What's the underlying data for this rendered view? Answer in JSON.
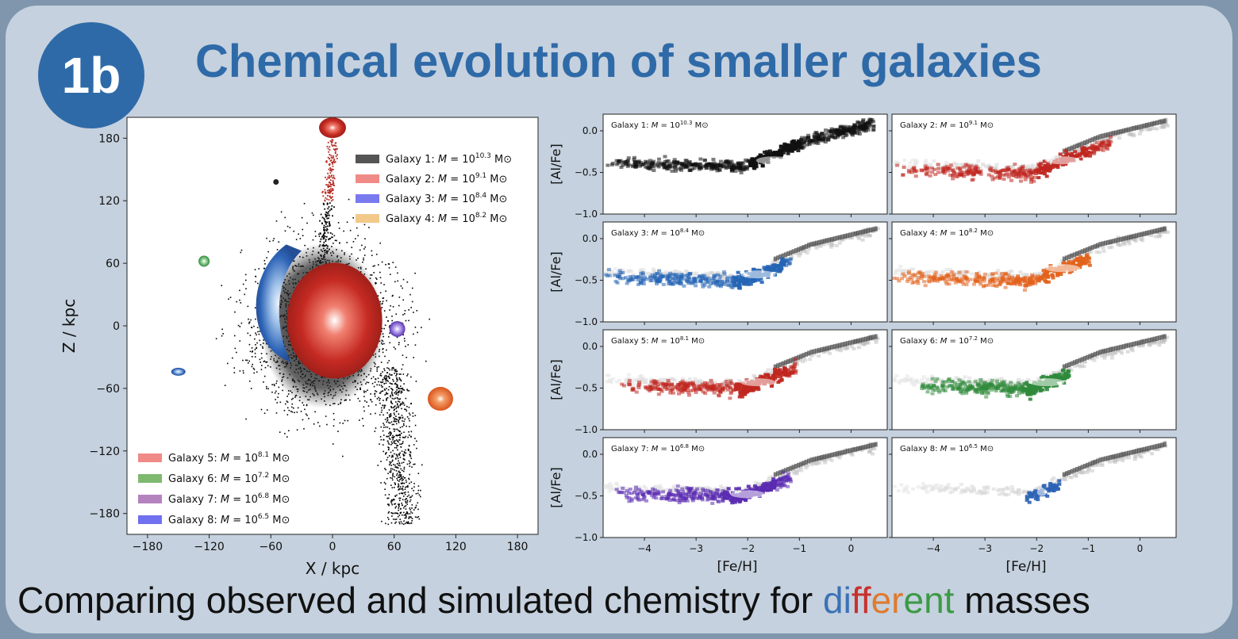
{
  "header": {
    "badge": "1b",
    "title": "Chemical evolution of smaller galaxies"
  },
  "caption": {
    "prefix": "Comparing observed and simulated chemistry for ",
    "word_parts": [
      "di",
      "ff",
      "er",
      "e",
      "nt"
    ],
    "word_colors": [
      "#3b72b6",
      "#c9302c",
      "#e07a2e",
      "#3c9a45",
      "#3c9a45"
    ],
    "suffix": " masses"
  },
  "colors": {
    "badge": "#2f6aa8",
    "title": "#2f6aa8",
    "panel": "#c5d1de",
    "frame": "#7f96ad"
  },
  "chart_data": [
    {
      "type": "scatter",
      "title": "",
      "xlabel": "X / kpc",
      "ylabel": "Z / kpc",
      "xlim": [
        -200,
        200
      ],
      "ylim": [
        -200,
        200
      ],
      "xticks": [
        -180,
        -120,
        -60,
        0,
        60,
        120,
        180
      ],
      "yticks": [
        -180,
        -120,
        -60,
        0,
        60,
        120,
        180
      ],
      "legend_upper": {
        "placement": "top-right",
        "entries": [
          {
            "text": "Galaxy 1: ",
            "mass_exp": "10.3",
            "color": "#555555"
          },
          {
            "text": "Galaxy 2: ",
            "mass_exp": "9.1",
            "color": "#f08a86"
          },
          {
            "text": "Galaxy 3: ",
            "mass_exp": "8.4",
            "color": "#7a7af0"
          },
          {
            "text": "Galaxy 4: ",
            "mass_exp": "8.2",
            "color": "#f3c98a"
          }
        ]
      },
      "legend_lower": {
        "placement": "bottom-left",
        "entries": [
          {
            "text": "Galaxy 5: ",
            "mass_exp": "8.1",
            "color": "#f08a86"
          },
          {
            "text": "Galaxy 6: ",
            "mass_exp": "7.2",
            "color": "#7fb86f"
          },
          {
            "text": "Galaxy 7: ",
            "mass_exp": "6.8",
            "color": "#b582c0"
          },
          {
            "text": "Galaxy 8: ",
            "mass_exp": "6.5",
            "color": "#7070f0"
          }
        ]
      },
      "mass_label": "M",
      "mass_base": "10",
      "mass_unit": "M",
      "clumps": [
        {
          "name": "Galaxy 1",
          "center": [
            -5,
            0
          ],
          "color": "#111111"
        },
        {
          "name": "Galaxy 2",
          "center": [
            0,
            190
          ],
          "color": "#d0392e"
        },
        {
          "name": "red halo",
          "center": [
            2,
            5
          ],
          "color": "#d0392e"
        },
        {
          "name": "blue arc",
          "center": [
            -50,
            5
          ],
          "color": "#2f65b8"
        },
        {
          "name": "Galaxy orange",
          "center": [
            105,
            -70
          ],
          "color": "#e4662c"
        },
        {
          "name": "Galaxy green",
          "center": [
            -125,
            62
          ],
          "color": "#3f9a45"
        },
        {
          "name": "Galaxy purple",
          "center": [
            63,
            -3
          ],
          "color": "#6a44bd"
        },
        {
          "name": "Galaxy blue small",
          "center": [
            -150,
            -44
          ],
          "color": "#3f7fc8"
        }
      ]
    },
    {
      "type": "heatmap",
      "xlabel": "[Fe/H]",
      "ylabel": "[Al/Fe]",
      "xlim": [
        -4.8,
        0.7
      ],
      "ylim": [
        -1.0,
        0.2
      ],
      "xticks": [
        -4,
        -3,
        -2,
        -1,
        0
      ],
      "yticks": [
        "0.0",
        "−0.5",
        "−1.0"
      ],
      "xtick_labels": [
        "−4",
        "−3",
        "−2",
        "−1",
        "0"
      ],
      "panels": [
        {
          "label": "Galaxy 1: ",
          "mass_exp": "10.3",
          "color": "#111111",
          "feh_range": [
            -4.8,
            0.4
          ],
          "center_feh": -1.5
        },
        {
          "label": "Galaxy 2: ",
          "mass_exp": "9.1",
          "color": "#c0271f",
          "feh_range": [
            -4.8,
            -0.6
          ],
          "center_feh": -1.5
        },
        {
          "label": "Galaxy 3: ",
          "mass_exp": "8.4",
          "color": "#2565b5",
          "feh_range": [
            -4.8,
            -1.2
          ],
          "center_feh": -1.8
        },
        {
          "label": "Galaxy 4: ",
          "mass_exp": "8.2",
          "color": "#e2631d",
          "feh_range": [
            -4.8,
            -1.0
          ],
          "center_feh": -1.5
        },
        {
          "label": "Galaxy 5: ",
          "mass_exp": "8.1",
          "color": "#c0271f",
          "feh_range": [
            -4.5,
            -1.1
          ],
          "center_feh": -1.8
        },
        {
          "label": "Galaxy 6: ",
          "mass_exp": "7.2",
          "color": "#2f8a3b",
          "feh_range": [
            -4.3,
            -1.4
          ],
          "center_feh": -1.8
        },
        {
          "label": "Galaxy 7: ",
          "mass_exp": "6.8",
          "color": "#5a2ab0",
          "feh_range": [
            -4.6,
            -1.2
          ],
          "center_feh": -2.0
        },
        {
          "label": "Galaxy 8: ",
          "mass_exp": "6.5",
          "color": "#2c63b5",
          "feh_range": [
            -2.3,
            -1.6
          ],
          "center_feh": -1.9
        }
      ],
      "background_track": "grey-shaded reference distribution of Galaxy 1 shown in every panel"
    }
  ]
}
